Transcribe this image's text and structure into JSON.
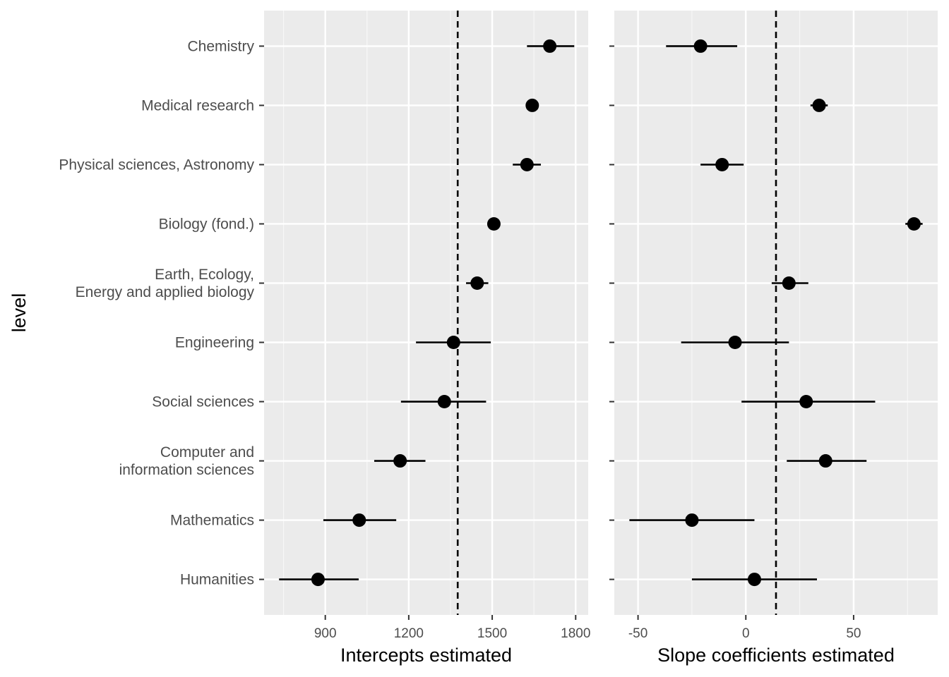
{
  "chart_data": {
    "type": "scatter",
    "ylabel": "level",
    "categories": [
      [
        "Chemistry"
      ],
      [
        "Medical research"
      ],
      [
        "Physical sciences, Astronomy"
      ],
      [
        "Biology (fond.)"
      ],
      [
        "Earth, Ecology,",
        "Energy and applied biology"
      ],
      [
        "Engineering"
      ],
      [
        "Social sciences"
      ],
      [
        "Computer and",
        "information sciences"
      ],
      [
        "Mathematics"
      ],
      [
        "Humanities"
      ]
    ],
    "panels": [
      {
        "xlabel": "Intercepts estimated",
        "xlim": [
          680,
          1845
        ],
        "xticks": [
          900,
          1200,
          1500,
          1800
        ],
        "xtick_labels": [
          "900",
          "1200",
          "1500",
          "1800"
        ],
        "reference_line": 1376,
        "estimates": [
          1707,
          1644,
          1625,
          1506,
          1446,
          1361,
          1328,
          1169,
          1022,
          874
        ],
        "lower": [
          1625,
          1644,
          1574,
          1506,
          1406,
          1226,
          1172,
          1076,
          893,
          734
        ],
        "upper": [
          1795,
          1644,
          1675,
          1506,
          1486,
          1495,
          1478,
          1260,
          1155,
          1020
        ]
      },
      {
        "xlabel": "Slope coefficients estimated",
        "xlim": [
          -61,
          89
        ],
        "xticks": [
          -50,
          0,
          50
        ],
        "xtick_labels": [
          "-50",
          "0",
          "50"
        ],
        "reference_line": 14,
        "estimates": [
          -21,
          34,
          -11,
          78,
          20,
          -5,
          28,
          37,
          -25,
          4
        ],
        "lower": [
          -37,
          30,
          -21,
          74,
          12,
          -30,
          -2,
          19,
          -54,
          -25
        ],
        "upper": [
          -4,
          38,
          -1,
          82,
          29,
          20,
          60,
          56,
          4,
          33
        ]
      }
    ],
    "grid": true
  }
}
